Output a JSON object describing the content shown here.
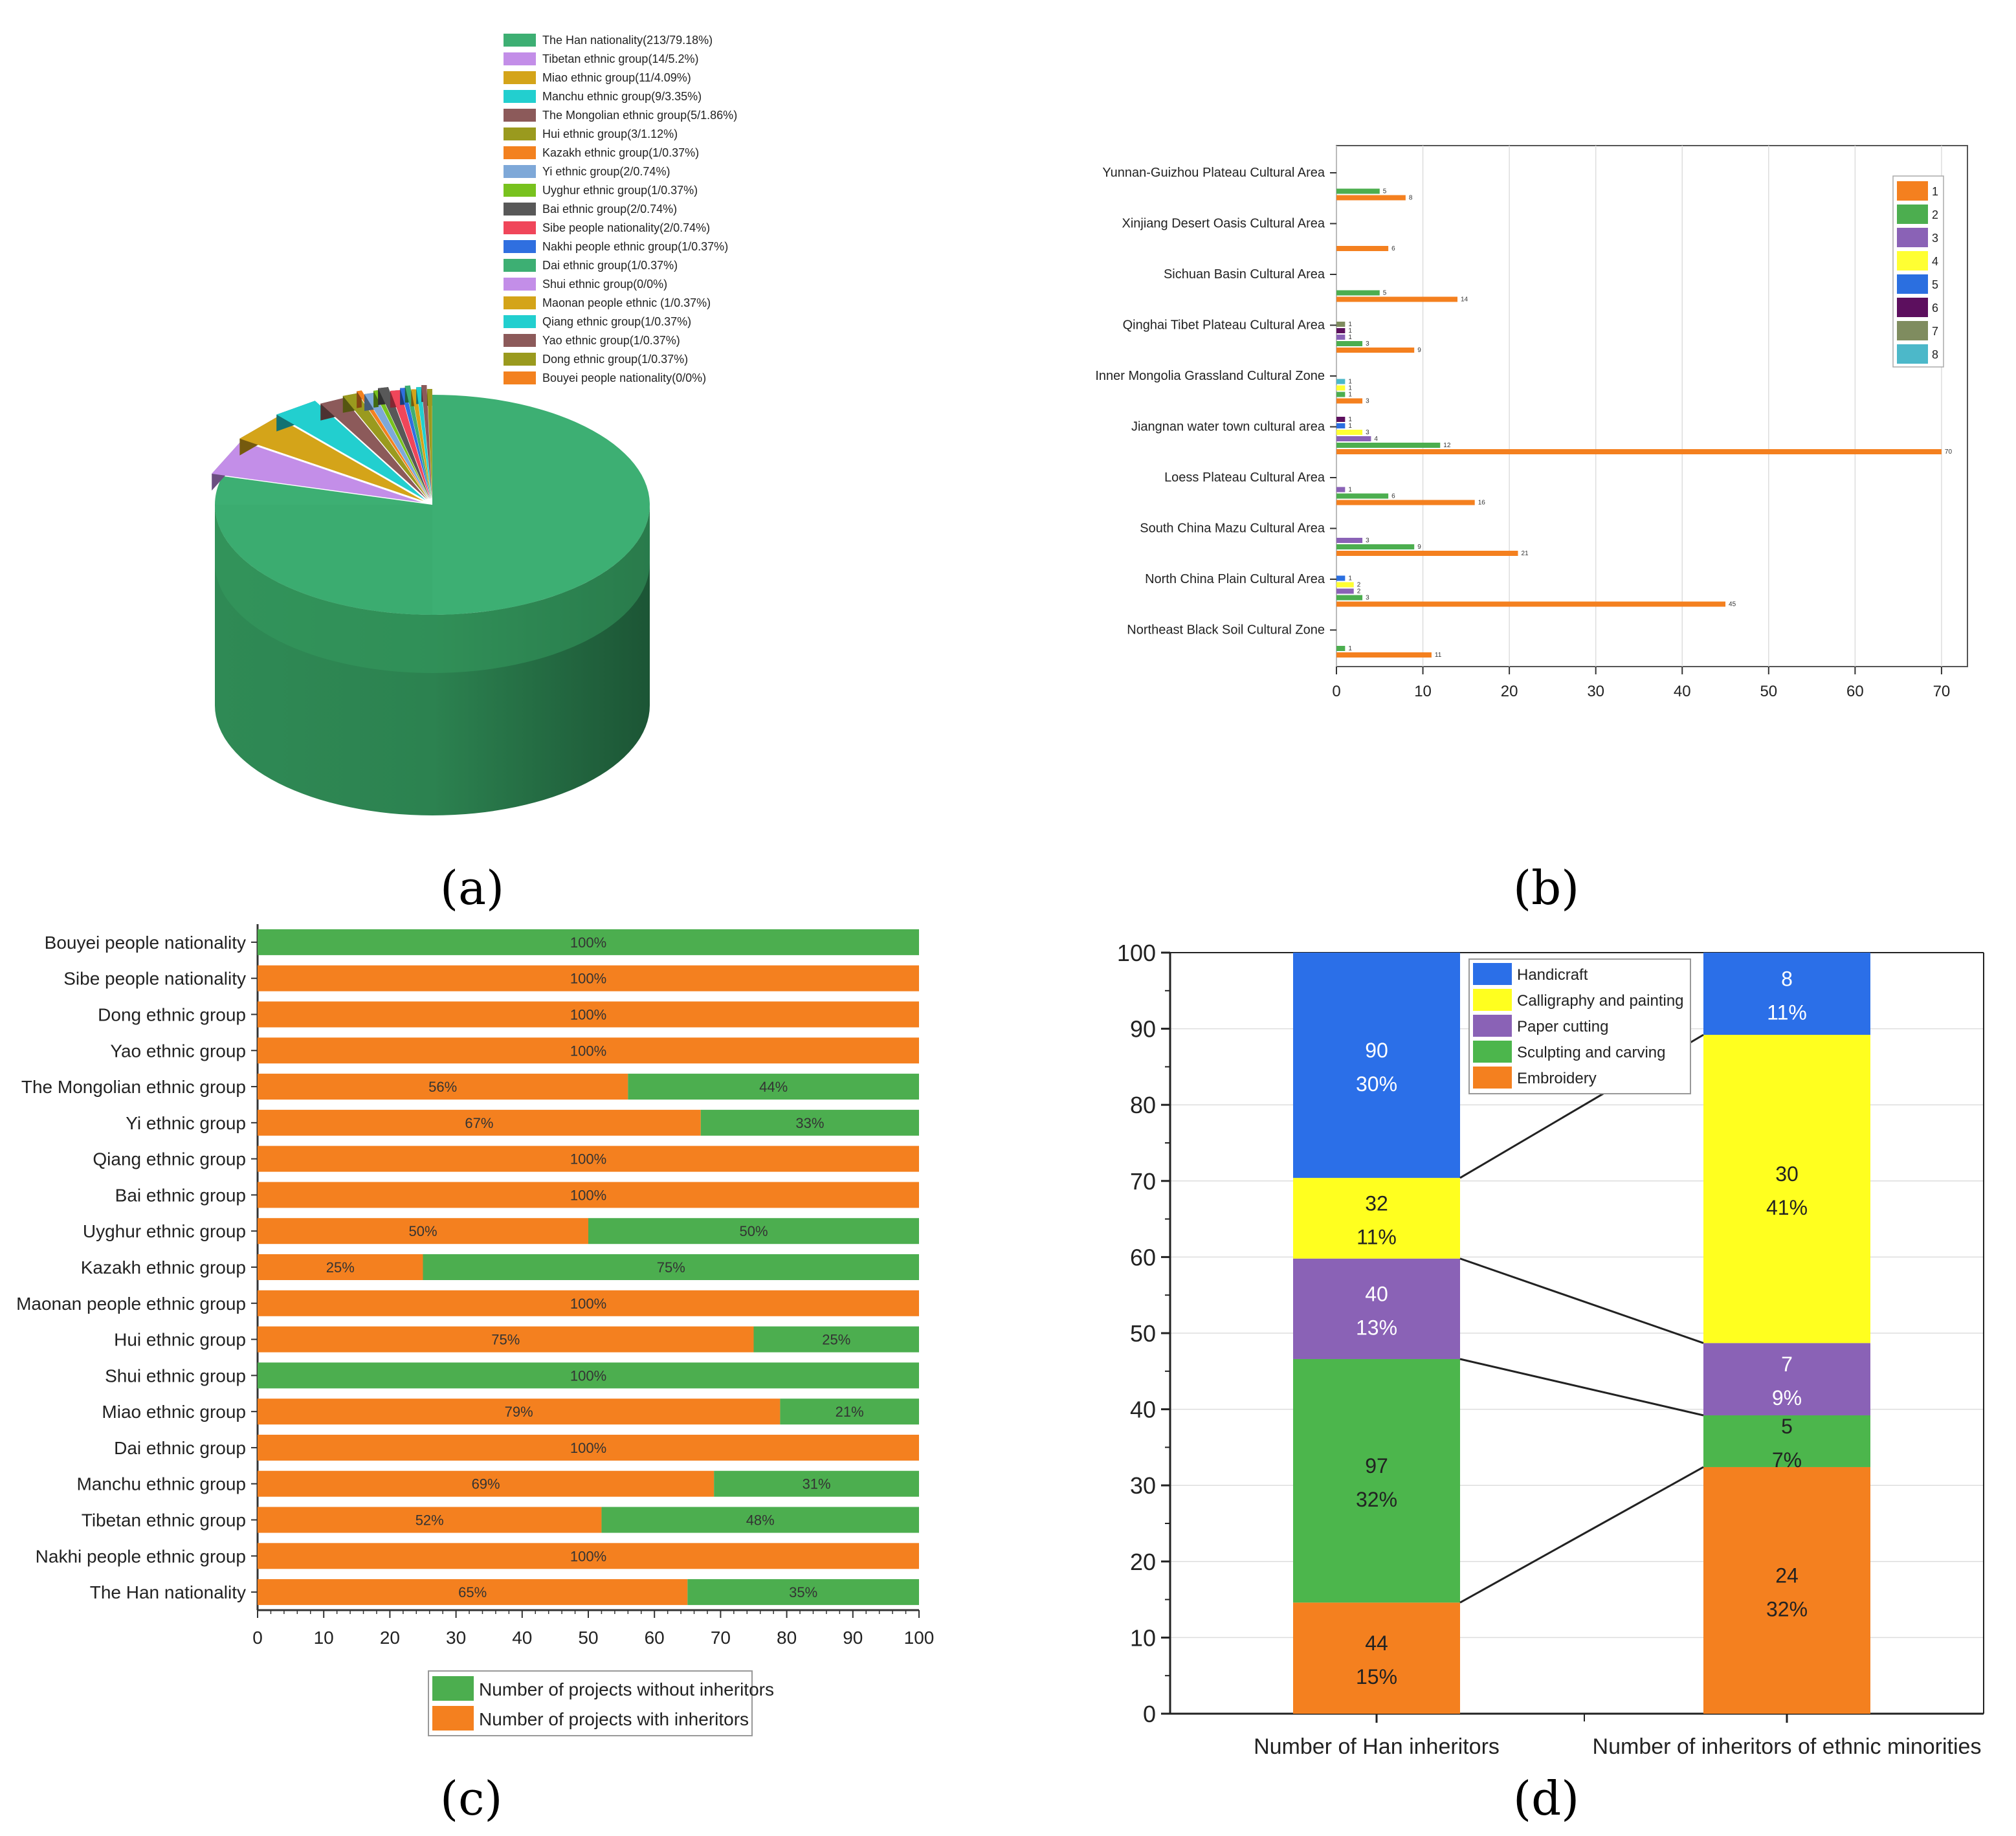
{
  "panel_labels": {
    "a": "(a)",
    "b": "(b)",
    "c": "(c)",
    "d": "(d)"
  },
  "chart_data": [
    {
      "id": "a",
      "type": "pie",
      "title": "",
      "slices": [
        {
          "label": "The Han nationality(213/79.18%)",
          "value": 79.18,
          "color": "#3daf73"
        },
        {
          "label": "Tibetan ethnic group(14/5.2%)",
          "value": 5.2,
          "color": "#c38ee8"
        },
        {
          "label": "Miao ethnic group(11/4.09%)",
          "value": 4.09,
          "color": "#d4a419"
        },
        {
          "label": "Manchu ethnic group(9/3.35%)",
          "value": 3.35,
          "color": "#22cfcf"
        },
        {
          "label": "The Mongolian ethnic group(5/1.86%)",
          "value": 1.86,
          "color": "#8c5a5a"
        },
        {
          "label": "Hui ethnic group(3/1.12%)",
          "value": 1.12,
          "color": "#9a9a1e"
        },
        {
          "label": "Kazakh ethnic group(1/0.37%)",
          "value": 0.37,
          "color": "#f3811f"
        },
        {
          "label": "Yi ethnic group(2/0.74%)",
          "value": 0.74,
          "color": "#7ea8d8"
        },
        {
          "label": "Uyghur ethnic group(1/0.37%)",
          "value": 0.37,
          "color": "#78c21e"
        },
        {
          "label": "Bai ethnic group(2/0.74%)",
          "value": 0.74,
          "color": "#585858"
        },
        {
          "label": "Sibe people nationality(2/0.74%)",
          "value": 0.74,
          "color": "#f0465a"
        },
        {
          "label": "Nakhi people ethnic group(1/0.37%)",
          "value": 0.37,
          "color": "#2f6fe0"
        },
        {
          "label": "Dai ethnic group(1/0.37%)",
          "value": 0.37,
          "color": "#3daf73"
        },
        {
          "label": "Shui ethnic group(0/0%)",
          "value": 0.0,
          "color": "#c38ee8"
        },
        {
          "label": "Maonan people ethnic (1/0.37%)",
          "value": 0.37,
          "color": "#d4a419"
        },
        {
          "label": "Qiang ethnic group(1/0.37%)",
          "value": 0.37,
          "color": "#22cfcf"
        },
        {
          "label": "Yao ethnic group(1/0.37%)",
          "value": 0.37,
          "color": "#8c5a5a"
        },
        {
          "label": "Dong ethnic group(1/0.37%)",
          "value": 0.37,
          "color": "#9a9a1e"
        },
        {
          "label": "Bouyei people nationality(0/0%)",
          "value": 0.0,
          "color": "#f3811f"
        }
      ]
    },
    {
      "id": "b",
      "type": "bar",
      "orientation": "horizontal",
      "title": "",
      "categories": [
        "Yunnan-Guizhou Plateau Cultural Area",
        "Xinjiang Desert Oasis Cultural Area",
        "Sichuan Basin Cultural Area",
        "Qinghai Tibet Plateau Cultural Area",
        "Inner Mongolia Grassland Cultural Zone",
        "Jiangnan water town cultural area",
        "Loess Plateau Cultural Area",
        "South China Mazu Cultural Area",
        "North China Plain Cultural Area",
        "Northeast Black Soil Cultural Zone"
      ],
      "series": [
        {
          "name": "1",
          "color": "#f4801f",
          "values": [
            8,
            6,
            14,
            9,
            3,
            70,
            16,
            21,
            45,
            11
          ]
        },
        {
          "name": "2",
          "color": "#4cae4f",
          "values": [
            5,
            0,
            5,
            3,
            1,
            12,
            6,
            9,
            3,
            1
          ]
        },
        {
          "name": "3",
          "color": "#8a62b6",
          "values": [
            0,
            0,
            0,
            1,
            0,
            4,
            1,
            3,
            2,
            0
          ]
        },
        {
          "name": "4",
          "color": "#ffff33",
          "values": [
            0,
            0,
            0,
            0,
            1,
            3,
            0,
            0,
            2,
            0
          ]
        },
        {
          "name": "5",
          "color": "#2b6fe0",
          "values": [
            0,
            0,
            0,
            0,
            0,
            1,
            0,
            0,
            1,
            0
          ]
        },
        {
          "name": "6",
          "color": "#5c0f5e",
          "values": [
            0,
            0,
            0,
            1,
            0,
            1,
            0,
            0,
            0,
            0
          ]
        },
        {
          "name": "7",
          "color": "#7f8c5f",
          "values": [
            0,
            0,
            0,
            1,
            0,
            0,
            0,
            0,
            0,
            0
          ]
        },
        {
          "name": "8",
          "color": "#4cb8c9",
          "values": [
            0,
            0,
            0,
            0,
            1,
            0,
            0,
            0,
            0,
            0
          ]
        }
      ],
      "xlim": [
        0,
        73
      ],
      "xticks": [
        0,
        10,
        20,
        30,
        40,
        50,
        60,
        70
      ],
      "xlabel": "",
      "ylabel": ""
    },
    {
      "id": "c",
      "type": "bar",
      "orientation": "horizontal",
      "stacked": true,
      "title": "",
      "categories": [
        "Bouyei people nationality",
        "Sibe people nationality",
        "Dong ethnic group",
        "Yao ethnic group",
        "The Mongolian ethnic group",
        "Yi ethnic group",
        "Qiang ethnic group",
        "Bai ethnic group",
        "Uyghur ethnic group",
        "Kazakh ethnic group",
        "Maonan people ethnic group",
        "Hui ethnic group",
        "Shui ethnic group",
        "Miao ethnic group",
        "Dai ethnic group",
        "Manchu ethnic group",
        "Tibetan ethnic group",
        "Nakhi people ethnic group",
        "The Han nationality"
      ],
      "series": [
        {
          "name": "Number of projects with inheritors",
          "color": "#f4801f",
          "values": [
            0,
            100,
            100,
            100,
            56,
            67,
            100,
            100,
            50,
            25,
            100,
            75,
            0,
            79,
            100,
            69,
            52,
            100,
            65
          ]
        },
        {
          "name": "Number of projects without inheritors",
          "color": "#4cae4f",
          "values": [
            100,
            0,
            0,
            0,
            44,
            33,
            0,
            0,
            50,
            75,
            0,
            25,
            100,
            21,
            0,
            31,
            48,
            0,
            35
          ]
        }
      ],
      "legend": [
        "Number of projects without inheritors",
        "Number of projects with inheritors"
      ],
      "xlim": [
        0,
        100
      ],
      "xticks": [
        0,
        10,
        20,
        30,
        40,
        50,
        60,
        70,
        80,
        90,
        100
      ],
      "xlabel": "",
      "ylabel": ""
    },
    {
      "id": "d",
      "type": "bar",
      "stacked": true,
      "title": "",
      "categories": [
        "Number of Han inheritors",
        "Number of inheritors of ethnic minorities"
      ],
      "series": [
        {
          "name": "Embroidery",
          "color": "#f4801f",
          "counts": [
            44,
            24
          ],
          "percents": [
            14.6,
            32.4
          ],
          "labels_pct": [
            "15%",
            "32%"
          ]
        },
        {
          "name": "Sculpting and carving",
          "color": "#4cb64c",
          "counts": [
            97,
            5
          ],
          "percents": [
            32.0,
            6.8
          ],
          "labels_pct": [
            "32%",
            "7%"
          ]
        },
        {
          "name": "Paper cutting",
          "color": "#8a62b6",
          "counts": [
            40,
            7
          ],
          "percents": [
            13.2,
            9.5
          ],
          "labels_pct": [
            "13%",
            "9%"
          ]
        },
        {
          "name": "Calligraphy and painting",
          "color": "#ffff1f",
          "counts": [
            32,
            30
          ],
          "percents": [
            10.6,
            40.5
          ],
          "labels_pct": [
            "11%",
            "41%"
          ]
        },
        {
          "name": "Handicraft",
          "color": "#2b6fe8",
          "counts": [
            90,
            8
          ],
          "percents": [
            29.6,
            10.8
          ],
          "labels_pct": [
            "30%",
            "11%"
          ]
        }
      ],
      "legend_order": [
        "Handicraft",
        "Calligraphy and painting",
        "Paper cutting",
        "Sculpting and carving",
        "Embroidery"
      ],
      "ylim": [
        0,
        100
      ],
      "yticks": [
        0,
        10,
        20,
        30,
        40,
        50,
        60,
        70,
        80,
        90,
        100
      ],
      "xlabel": "",
      "ylabel": ""
    }
  ]
}
